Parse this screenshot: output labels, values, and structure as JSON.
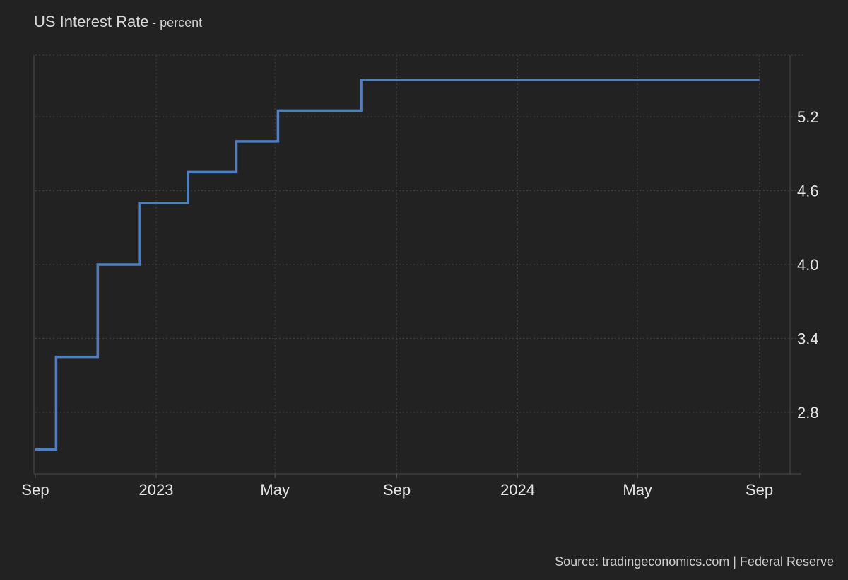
{
  "title": "US Interest Rate",
  "subtitle": "- percent",
  "source": "Source: tradingeconomics.com | Federal Reserve",
  "colors": {
    "background": "#222222",
    "series": "#4f7fc0",
    "grid": "#3f3f3f",
    "text": "#e6e6e6"
  },
  "chart_data": {
    "type": "line",
    "step": true,
    "title": "US Interest Rate",
    "subtitle": "- percent",
    "xlabel": "",
    "ylabel": "",
    "x_ticks": [
      {
        "date": "2022-08-31",
        "label": "Sep"
      },
      {
        "date": "2022-12-31",
        "label": "2023"
      },
      {
        "date": "2023-04-30",
        "label": "May"
      },
      {
        "date": "2023-08-31",
        "label": "Sep"
      },
      {
        "date": "2023-12-31",
        "label": "2024"
      },
      {
        "date": "2024-04-30",
        "label": "May"
      },
      {
        "date": "2024-08-31",
        "label": "Sep"
      }
    ],
    "y_ticks": [
      2.8,
      3.4,
      4.0,
      4.6,
      5.2
    ],
    "ylim": [
      2.3,
      5.7
    ],
    "xlim": [
      "2022-08-31",
      "2024-10-01"
    ],
    "y_axis_position": "right",
    "grid": true,
    "legend": "none",
    "series": [
      {
        "points": [
          {
            "x": "2022-08-31",
            "y": 2.5
          },
          {
            "x": "2022-09-21",
            "y": 3.25
          },
          {
            "x": "2022-11-02",
            "y": 4.0
          },
          {
            "x": "2022-12-14",
            "y": 4.5
          },
          {
            "x": "2023-02-01",
            "y": 4.75
          },
          {
            "x": "2023-03-22",
            "y": 5.0
          },
          {
            "x": "2023-05-03",
            "y": 5.25
          },
          {
            "x": "2023-07-26",
            "y": 5.5
          },
          {
            "x": "2024-08-31",
            "y": 5.5
          }
        ]
      }
    ]
  }
}
